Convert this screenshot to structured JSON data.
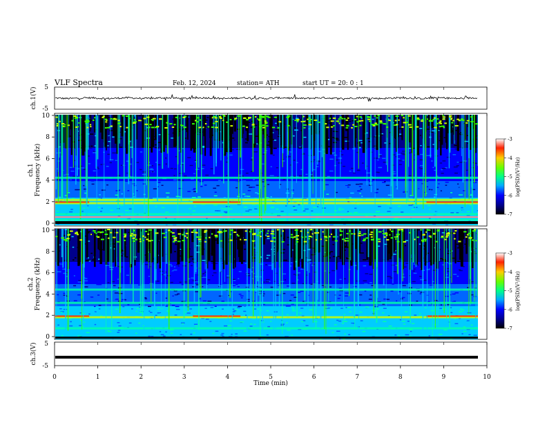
{
  "header": {
    "title": "VLF  Spectra",
    "date": "Feb. 12, 2024",
    "station": "station= ATH",
    "start": "start  UT  =    20: 0   : 1"
  },
  "colors": {
    "palette": [
      "#000000",
      "#00008b",
      "#0000ff",
      "#0066ff",
      "#00ccff",
      "#00ffaa",
      "#33ff00",
      "#ccff00",
      "#ffdd00",
      "#ff3300",
      "#ff8888",
      "#ffffff"
    ],
    "trace": "#000000"
  },
  "chart_data": [
    {
      "type": "line",
      "panel": "ch1-waveform",
      "ylabel": "ch.1(V)",
      "yticks": [
        "5",
        "-5"
      ],
      "ylim": [
        -5,
        5
      ],
      "xlim": [
        0,
        10
      ],
      "description_values": {
        "mean": 0,
        "amplitude": 0.6
      }
    },
    {
      "type": "heatmap",
      "panel": "ch1-spectrogram",
      "ylabel": "ch.1\nFrequency  (kHz)",
      "ylabel_lines": [
        "ch.1",
        "Frequency  (kHz)"
      ],
      "yticks": [
        "10",
        "8",
        "6",
        "4",
        "2",
        "0"
      ],
      "ylim": [
        0,
        10
      ],
      "xlim": [
        0,
        9.8
      ],
      "colorbar": {
        "label": "log(PSD)(V²/Hz)",
        "ticks": [
          "-3",
          "-4",
          "-5",
          "-6",
          "-7"
        ],
        "range": [
          -7,
          -3
        ]
      },
      "bands_khz": [
        0.5,
        1.0,
        2.0,
        2.3,
        4.3
      ]
    },
    {
      "type": "heatmap",
      "panel": "ch2-spectrogram",
      "ylabel_lines": [
        "ch.2",
        "Frequency  (kHz)"
      ],
      "yticks": [
        "10",
        "8",
        "6",
        "4",
        "2",
        "0"
      ],
      "ylim": [
        0,
        10
      ],
      "xlim": [
        0,
        9.8
      ],
      "colorbar": {
        "label": "log(PSD)(V²/Hz)",
        "ticks": [
          "-3",
          "-4",
          "-5",
          "-6",
          "-7"
        ],
        "range": [
          -7,
          -3
        ]
      },
      "bands_khz": [
        1.0,
        2.0,
        3.3,
        4.5
      ]
    },
    {
      "type": "line",
      "panel": "ch3-waveform",
      "ylabel": "ch.3(V)",
      "yticks": [
        "5",
        "-5"
      ],
      "ylim": [
        -5,
        5
      ],
      "xlim": [
        0,
        10
      ],
      "description_values": {
        "mean": -1.5,
        "amplitude": 0
      }
    }
  ],
  "xaxis": {
    "label": "Time  (min)",
    "ticks": [
      "0",
      "1",
      "2",
      "3",
      "4",
      "5",
      "6",
      "7",
      "8",
      "9",
      "10"
    ],
    "range": [
      0,
      10
    ]
  }
}
